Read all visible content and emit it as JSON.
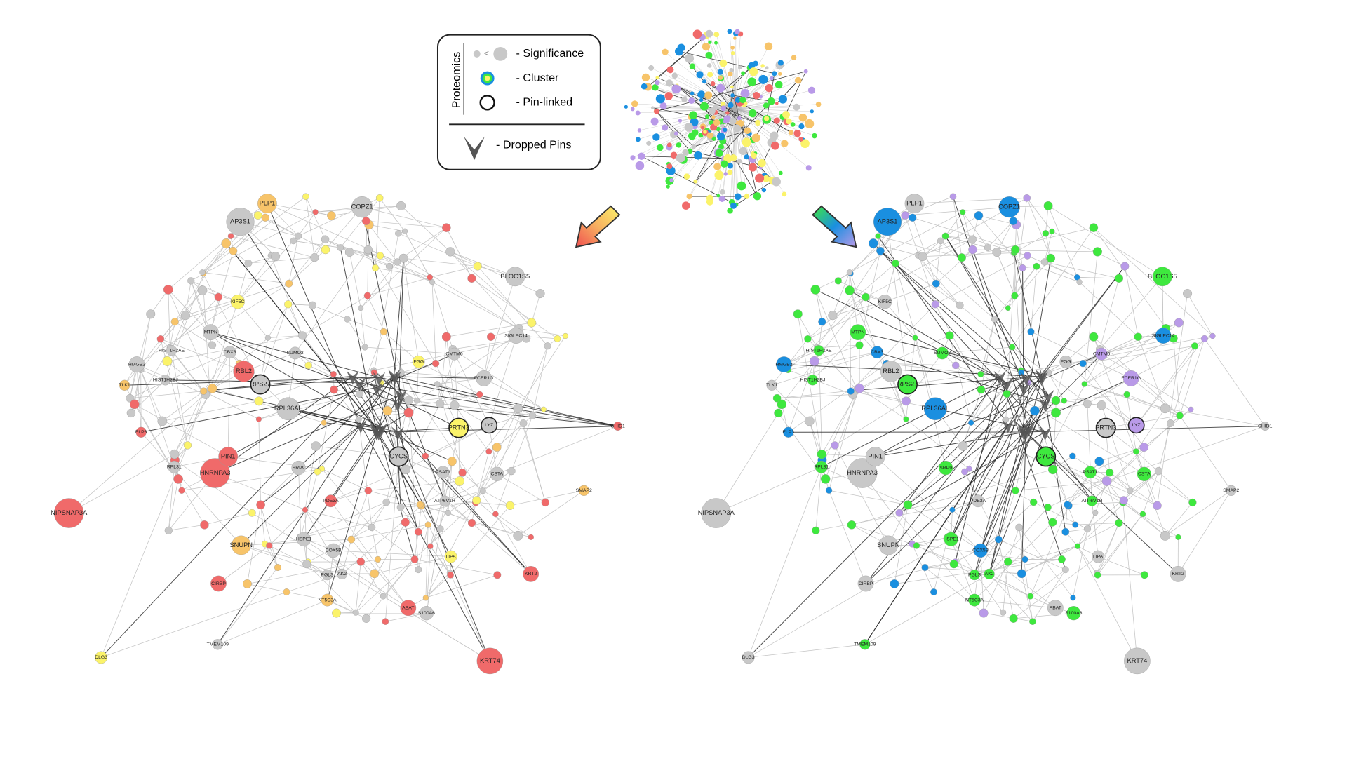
{
  "legend": {
    "group_label": "Proteomics",
    "significance_symbol": "<",
    "items": [
      "- Significance",
      "- Cluster",
      "- Pin-linked",
      "- Dropped Pins"
    ]
  },
  "networks": [
    {
      "nodes": [
        {
          "label": "AP3S1",
          "color": "#c8c8c8"
        },
        {
          "label": "PLP1",
          "color": "#f7c46a"
        },
        {
          "label": "COPZ1",
          "color": "#c8c8c8"
        },
        {
          "label": "BLOC1S5",
          "color": "#c8c8c8"
        },
        {
          "label": "RBL2",
          "color": "#f06a6a"
        },
        {
          "label": "RPS27",
          "color": "#c8c8c8"
        },
        {
          "label": "RPL36AL",
          "color": "#c8c8c8"
        },
        {
          "label": "HNRNPA3",
          "color": "#f06a6a"
        },
        {
          "label": "PIN1",
          "color": "#f06a6a"
        },
        {
          "label": "NIPSNAP3A",
          "color": "#f06a6a"
        },
        {
          "label": "SNUPN",
          "color": "#f7c46a"
        },
        {
          "label": "CIRBP",
          "color": "#f06a6a"
        },
        {
          "label": "KRT74",
          "color": "#f06a6a"
        },
        {
          "label": "KRT2",
          "color": "#f06a6a"
        },
        {
          "label": "ABAT",
          "color": "#f06a6a"
        },
        {
          "label": "PRTN3",
          "color": "#fbf36a"
        },
        {
          "label": "CYCS",
          "color": "#c8c8c8"
        },
        {
          "label": "LYZ",
          "color": "#c8c8c8"
        },
        {
          "label": "SIGLEC14",
          "color": "#c8c8c8"
        },
        {
          "label": "FCER1G",
          "color": "#c8c8c8"
        },
        {
          "label": "MTPN",
          "color": "#c8c8c8"
        },
        {
          "label": "HMGB2",
          "color": "#c8c8c8"
        },
        {
          "label": "HIST1H2AE",
          "color": "#c8c8c8"
        },
        {
          "label": "HIST1H2BJ",
          "color": "#c8c8c8"
        },
        {
          "label": "CBX3",
          "color": "#c8c8c8"
        },
        {
          "label": "SUMO3",
          "color": "#c8c8c8"
        },
        {
          "label": "KIF5C",
          "color": "#fbf36a"
        },
        {
          "label": "CSTA",
          "color": "#c8c8c8"
        },
        {
          "label": "COX5B",
          "color": "#c8c8c8"
        },
        {
          "label": "HSPE1",
          "color": "#c8c8c8"
        },
        {
          "label": "PSAT1",
          "color": "#c8c8c8"
        },
        {
          "label": "SRP9",
          "color": "#c8c8c8"
        },
        {
          "label": "S100A6",
          "color": "#c8c8c8"
        },
        {
          "label": "LIPA",
          "color": "#fbf36a"
        },
        {
          "label": "DLG3",
          "color": "#fbf36a"
        },
        {
          "label": "TMEM109",
          "color": "#c8c8c8"
        },
        {
          "label": "PGLS",
          "color": "#c8c8c8"
        },
        {
          "label": "AK2",
          "color": "#c8c8c8"
        },
        {
          "label": "ATP6V1H",
          "color": "#c8c8c8"
        },
        {
          "label": "RPL31",
          "color": "#c8c8c8"
        },
        {
          "label": "ELP3",
          "color": "#f06a6a"
        },
        {
          "label": "TLK1",
          "color": "#f7c46a"
        },
        {
          "label": "PDE3A",
          "color": "#f06a6a"
        },
        {
          "label": "NT5C3A",
          "color": "#f7c46a"
        },
        {
          "label": "CMTM6",
          "color": "#c8c8c8"
        },
        {
          "label": "FGG",
          "color": "#fbf36a"
        },
        {
          "label": "SMAP2",
          "color": "#f7c46a"
        },
        {
          "label": "CHID1",
          "color": "#f06a6a"
        }
      ]
    },
    {
      "nodes": [
        {
          "label": "AP3S1",
          "color": "#1a8fe0"
        },
        {
          "label": "PLP1",
          "color": "#c8c8c8"
        },
        {
          "label": "COPZ1",
          "color": "#1a8fe0"
        },
        {
          "label": "BLOC1S5",
          "color": "#3ee83e"
        },
        {
          "label": "RBL2",
          "color": "#c8c8c8"
        },
        {
          "label": "RPS27",
          "color": "#3ee83e"
        },
        {
          "label": "RPL36AL",
          "color": "#1a8fe0"
        },
        {
          "label": "HNRNPA3",
          "color": "#c8c8c8"
        },
        {
          "label": "PIN1",
          "color": "#c8c8c8"
        },
        {
          "label": "NIPSNAP3A",
          "color": "#c8c8c8"
        },
        {
          "label": "SNUPN",
          "color": "#c8c8c8"
        },
        {
          "label": "CIRBP",
          "color": "#c8c8c8"
        },
        {
          "label": "KRT74",
          "color": "#c8c8c8"
        },
        {
          "label": "KRT2",
          "color": "#c8c8c8"
        },
        {
          "label": "ABAT",
          "color": "#c8c8c8"
        },
        {
          "label": "PRTN3",
          "color": "#c8c8c8"
        },
        {
          "label": "CYCS",
          "color": "#3ee83e"
        },
        {
          "label": "LYZ",
          "color": "#b99ae8"
        },
        {
          "label": "SIGLEC14",
          "color": "#1a8fe0"
        },
        {
          "label": "FCER1G",
          "color": "#b99ae8"
        },
        {
          "label": "MTPN",
          "color": "#3ee83e"
        },
        {
          "label": "HMGB2",
          "color": "#1a8fe0"
        },
        {
          "label": "HIST1H2AE",
          "color": "#3ee83e"
        },
        {
          "label": "HIST1H2BJ",
          "color": "#3ee83e"
        },
        {
          "label": "CBX3",
          "color": "#1a8fe0"
        },
        {
          "label": "SUMO3",
          "color": "#3ee83e"
        },
        {
          "label": "KIF5C",
          "color": "#c8c8c8"
        },
        {
          "label": "CSTA",
          "color": "#3ee83e"
        },
        {
          "label": "COX5B",
          "color": "#1a8fe0"
        },
        {
          "label": "HSPE1",
          "color": "#3ee83e"
        },
        {
          "label": "PSAT1",
          "color": "#3ee83e"
        },
        {
          "label": "SRP9",
          "color": "#3ee83e"
        },
        {
          "label": "S100A6",
          "color": "#3ee83e"
        },
        {
          "label": "LIPA",
          "color": "#c8c8c8"
        },
        {
          "label": "DLG3",
          "color": "#c8c8c8"
        },
        {
          "label": "TMEM109",
          "color": "#3ee83e"
        },
        {
          "label": "PGLS",
          "color": "#3ee83e"
        },
        {
          "label": "AK2",
          "color": "#3ee83e"
        },
        {
          "label": "ATP6V1H",
          "color": "#3ee83e"
        },
        {
          "label": "RPL31",
          "color": "#3ee83e"
        },
        {
          "label": "ELP3",
          "color": "#1a8fe0"
        },
        {
          "label": "TLK1",
          "color": "#c8c8c8"
        },
        {
          "label": "PDE3A",
          "color": "#c8c8c8"
        },
        {
          "label": "NT5C3A",
          "color": "#3ee83e"
        },
        {
          "label": "CMTM6",
          "color": "#b99ae8"
        },
        {
          "label": "FGG",
          "color": "#c8c8c8"
        },
        {
          "label": "SMAP2",
          "color": "#c8c8c8"
        },
        {
          "label": "CHID1",
          "color": "#c8c8c8"
        }
      ]
    }
  ]
}
